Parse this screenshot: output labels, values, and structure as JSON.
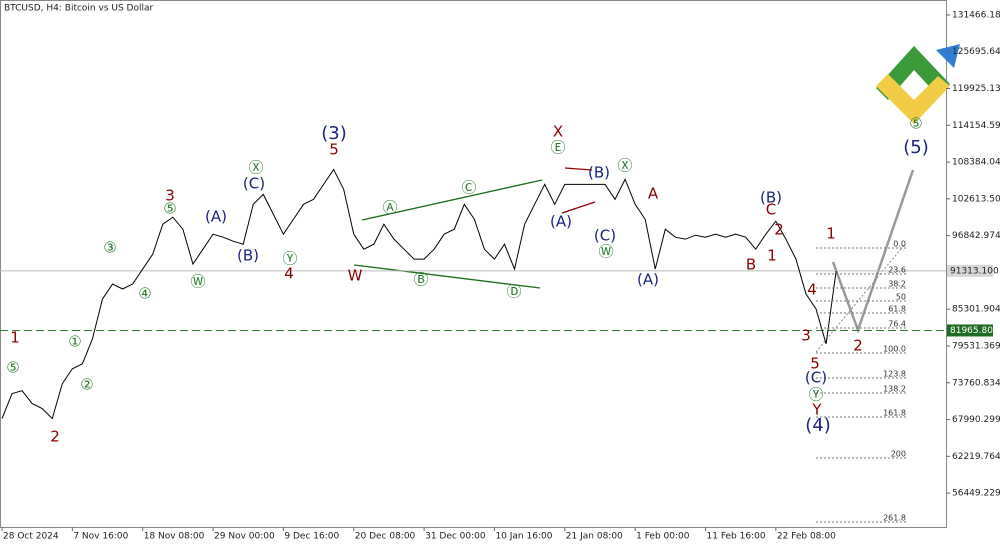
{
  "chart_data": {
    "type": "line",
    "title": "BTCUSD, H4:  Bitcoin vs US Dollar",
    "color": "#000000",
    "categories": [
      "28 Oct 2024",
      null,
      null,
      null,
      null,
      null,
      null,
      "7 Nov 16:00",
      null,
      null,
      null,
      null,
      null,
      null,
      "18 Nov 08:00",
      null,
      null,
      null,
      null,
      null,
      null,
      "29 Nov 00:00",
      null,
      null,
      null,
      null,
      null,
      null,
      "9 Dec 16:00",
      null,
      null,
      null,
      null,
      null,
      null,
      "20 Dec 08:00",
      null,
      null,
      null,
      null,
      null,
      null,
      "31 Dec 00:00",
      null,
      null,
      null,
      null,
      null,
      null,
      "10 Jan 16:00",
      null,
      null,
      null,
      null,
      null,
      null,
      "21 Jan 08:00",
      null,
      null,
      null,
      null,
      null,
      null,
      "1 Feb 00:00",
      null,
      null,
      null,
      null,
      null,
      null,
      "11 Feb 16:00",
      null,
      null,
      null,
      null,
      null,
      null,
      "22 Feb 08:00",
      null,
      null,
      null,
      null,
      null,
      null
    ],
    "values": [
      68140,
      72050,
      72520,
      70490,
      69710,
      68140,
      73620,
      75960,
      76740,
      80650,
      86910,
      89250,
      88470,
      89250,
      91600,
      93940,
      98630,
      99730,
      97850,
      92380,
      94720,
      97070,
      96600,
      95975,
      95500,
      101760,
      103320,
      100200,
      97070,
      99410,
      101760,
      102540,
      104890,
      107230,
      104100,
      97070,
      94720,
      95500,
      98630,
      96290,
      94720,
      93160,
      93160,
      94720,
      97070,
      97850,
      101760,
      99410,
      94720,
      93160,
      95500,
      91600,
      98630,
      101760,
      104890,
      101760,
      104890,
      104890,
      104890,
      104890,
      104890,
      102540,
      105670,
      101760,
      99410,
      91600,
      97850,
      96600,
      96290,
      96910,
      96600,
      97070,
      96600,
      97070,
      96600,
      94720,
      97070,
      99100,
      96290,
      93160,
      87690,
      85340,
      79870,
      91313.1
    ],
    "ylim": [
      51133,
      133811
    ],
    "yticks": [
      131466.184,
      125695.649,
      119925.134,
      114154.59,
      108384.044,
      102613.509,
      96842.974,
      85301.904,
      79531.369,
      73760.834,
      67990.299,
      62219.764,
      56449.229
    ],
    "current_price": {
      "value": 91313.1,
      "label": "91313.100"
    },
    "support_level": 81965.804,
    "annotations": [
      "1",
      "⑤",
      "2",
      "①",
      "②",
      "③",
      "④",
      "3",
      "⑤",
      "(A)",
      "Ⓦ",
      "(B)",
      "(C)",
      "4",
      "Ⓨ",
      "Ⓧ",
      "(3)",
      "5",
      "W",
      "Ⓐ",
      "Ⓒ",
      "Ⓑ",
      "Ⓓ",
      "X",
      "Ⓔ",
      "(A)",
      "(B)",
      "(C)",
      "Ⓦ",
      "Ⓧ",
      "A",
      "(A)",
      "(B)",
      "C",
      "2",
      "B",
      "1",
      "1",
      "4",
      "3",
      "2",
      "5",
      "(C)",
      "Ⓨ",
      "Y",
      "(4)",
      "(5)",
      "⑤"
    ],
    "fibonacci_levels": [
      "0.0",
      "23.6",
      "38.2",
      "50",
      "61.8",
      "76.4",
      "100.0",
      "123.8",
      "138.2",
      "161.8",
      "200",
      "261.8"
    ]
  }
}
